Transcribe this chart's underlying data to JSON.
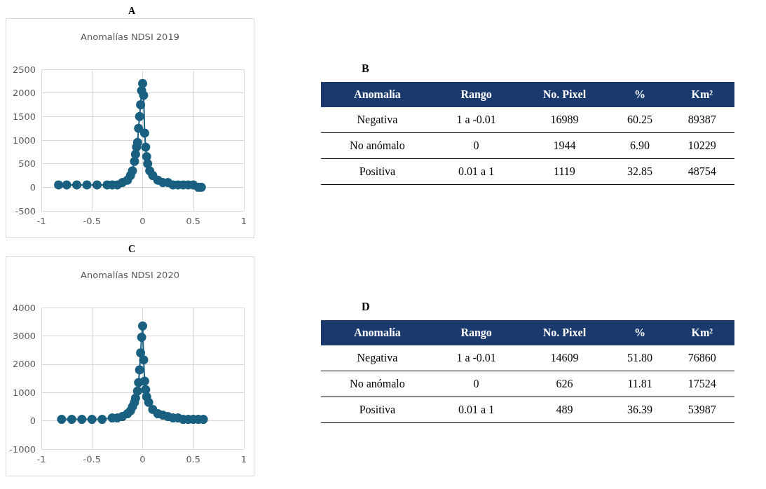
{
  "chart_data": [
    {
      "type": "line",
      "title": "Anomalías NDSI 2019",
      "annotations": [
        "A"
      ],
      "marker": "circle",
      "grid": true,
      "xlim": [
        -1,
        1
      ],
      "xticks": [
        -1,
        -0.5,
        0,
        0.5,
        1
      ],
      "ylim": [
        -500,
        2500
      ],
      "yticks": [
        -500,
        0,
        500,
        1000,
        1500,
        2000,
        2500
      ],
      "x": [
        -0.83,
        -0.75,
        -0.65,
        -0.55,
        -0.45,
        -0.35,
        -0.3,
        -0.25,
        -0.2,
        -0.15,
        -0.12,
        -0.1,
        -0.08,
        -0.07,
        -0.06,
        -0.05,
        -0.04,
        -0.03,
        -0.02,
        -0.01,
        0,
        0.01,
        0.02,
        0.03,
        0.04,
        0.05,
        0.07,
        0.1,
        0.15,
        0.2,
        0.25,
        0.3,
        0.35,
        0.4,
        0.45,
        0.5,
        0.55,
        0.58
      ],
      "series": [
        {
          "color": "#185f80",
          "values": [
            50,
            50,
            50,
            50,
            50,
            50,
            50,
            50,
            100,
            150,
            250,
            350,
            550,
            700,
            850,
            950,
            1250,
            1500,
            1750,
            2050,
            2200,
            1950,
            1150,
            850,
            650,
            500,
            350,
            250,
            150,
            100,
            100,
            50,
            50,
            50,
            50,
            50,
            0,
            0
          ]
        }
      ]
    },
    {
      "type": "other",
      "title": "B",
      "categories": [
        "Anomalía",
        "Rango",
        "No. Pixel",
        "%",
        "Km²"
      ],
      "cell_labels": [
        [
          "Negativa",
          "1 a -0.01",
          "16989",
          "60.25",
          "89387"
        ],
        [
          "No anómalo",
          "0",
          "1944",
          "6.90",
          "10229"
        ],
        [
          "Positiva",
          "0.01 a 1",
          "1119",
          "32.85",
          "48754"
        ]
      ]
    },
    {
      "type": "line",
      "title": "Anomalías NDSI 2020",
      "annotations": [
        "C"
      ],
      "marker": "circle",
      "grid": true,
      "xlim": [
        -1,
        1
      ],
      "xticks": [
        -1,
        -0.5,
        0,
        0.5,
        1
      ],
      "ylim": [
        -1000,
        4000
      ],
      "yticks": [
        -1000,
        0,
        1000,
        2000,
        3000,
        4000
      ],
      "x": [
        -0.8,
        -0.7,
        -0.6,
        -0.5,
        -0.4,
        -0.3,
        -0.25,
        -0.2,
        -0.15,
        -0.12,
        -0.1,
        -0.08,
        -0.07,
        -0.05,
        -0.04,
        -0.03,
        -0.02,
        -0.01,
        0,
        0.01,
        0.02,
        0.03,
        0.04,
        0.06,
        0.1,
        0.15,
        0.2,
        0.25,
        0.3,
        0.35,
        0.4,
        0.45,
        0.5,
        0.55,
        0.6
      ],
      "series": [
        {
          "color": "#185f80",
          "values": [
            50,
            50,
            50,
            50,
            50,
            100,
            100,
            150,
            250,
            350,
            500,
            650,
            800,
            1050,
            1350,
            1800,
            2400,
            2950,
            3350,
            2150,
            1400,
            1100,
            850,
            650,
            400,
            250,
            200,
            150,
            100,
            100,
            50,
            50,
            50,
            50,
            50
          ]
        }
      ]
    },
    {
      "type": "other",
      "title": "D",
      "categories": [
        "Anomalía",
        "Rango",
        "No. Pixel",
        "%",
        "Km²"
      ],
      "cell_labels": [
        [
          "Negativa",
          "1 a -0.01",
          "14609",
          "51.80",
          "76860"
        ],
        [
          "No anómalo",
          "0",
          "626",
          "11.81",
          "17524"
        ],
        [
          "Positiva",
          "0.01 a 1",
          "489",
          "36.39",
          "53987"
        ]
      ]
    }
  ]
}
